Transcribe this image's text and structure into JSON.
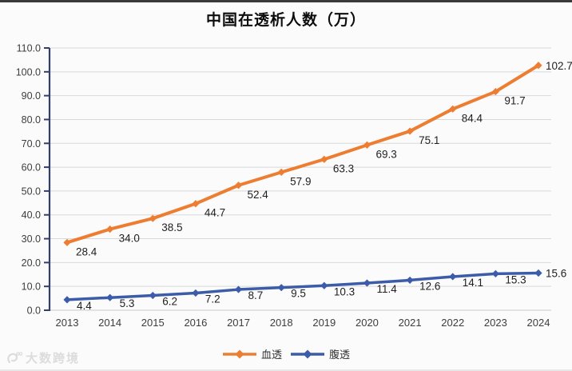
{
  "header": {
    "title": "中国在透析人数（万）"
  },
  "watermark": {
    "text": "大数跨境"
  },
  "chart_data": {
    "type": "line",
    "title": "中国在透析人数（万）",
    "categories": [
      "2013",
      "2014",
      "2015",
      "2016",
      "2017",
      "2018",
      "2019",
      "2020",
      "2021",
      "2022",
      "2023",
      "2024"
    ],
    "series": [
      {
        "key": "hemodialysis",
        "name": "血透",
        "color": "#ED7D31",
        "values": [
          28.4,
          34.0,
          38.5,
          44.7,
          52.4,
          57.9,
          63.3,
          69.3,
          75.1,
          84.4,
          91.7,
          102.7
        ]
      },
      {
        "key": "peritoneal-dialysis",
        "name": "腹透",
        "color": "#3C5BA9",
        "values": [
          4.4,
          5.3,
          6.2,
          7.2,
          8.7,
          9.5,
          10.3,
          11.4,
          12.6,
          14.1,
          15.3,
          15.6
        ]
      }
    ],
    "ylim": [
      0,
      110
    ],
    "ytick_step": 10,
    "ytick_format_decimals": 1,
    "grid": true,
    "legend_position": "bottom",
    "axis_color": "#333F6B",
    "grid_color": "#D9D9D9",
    "zero_line_color": "#C9C9C9",
    "tick_label_color": "#3d3d3d",
    "data_label_color": "#1f1f1f"
  }
}
